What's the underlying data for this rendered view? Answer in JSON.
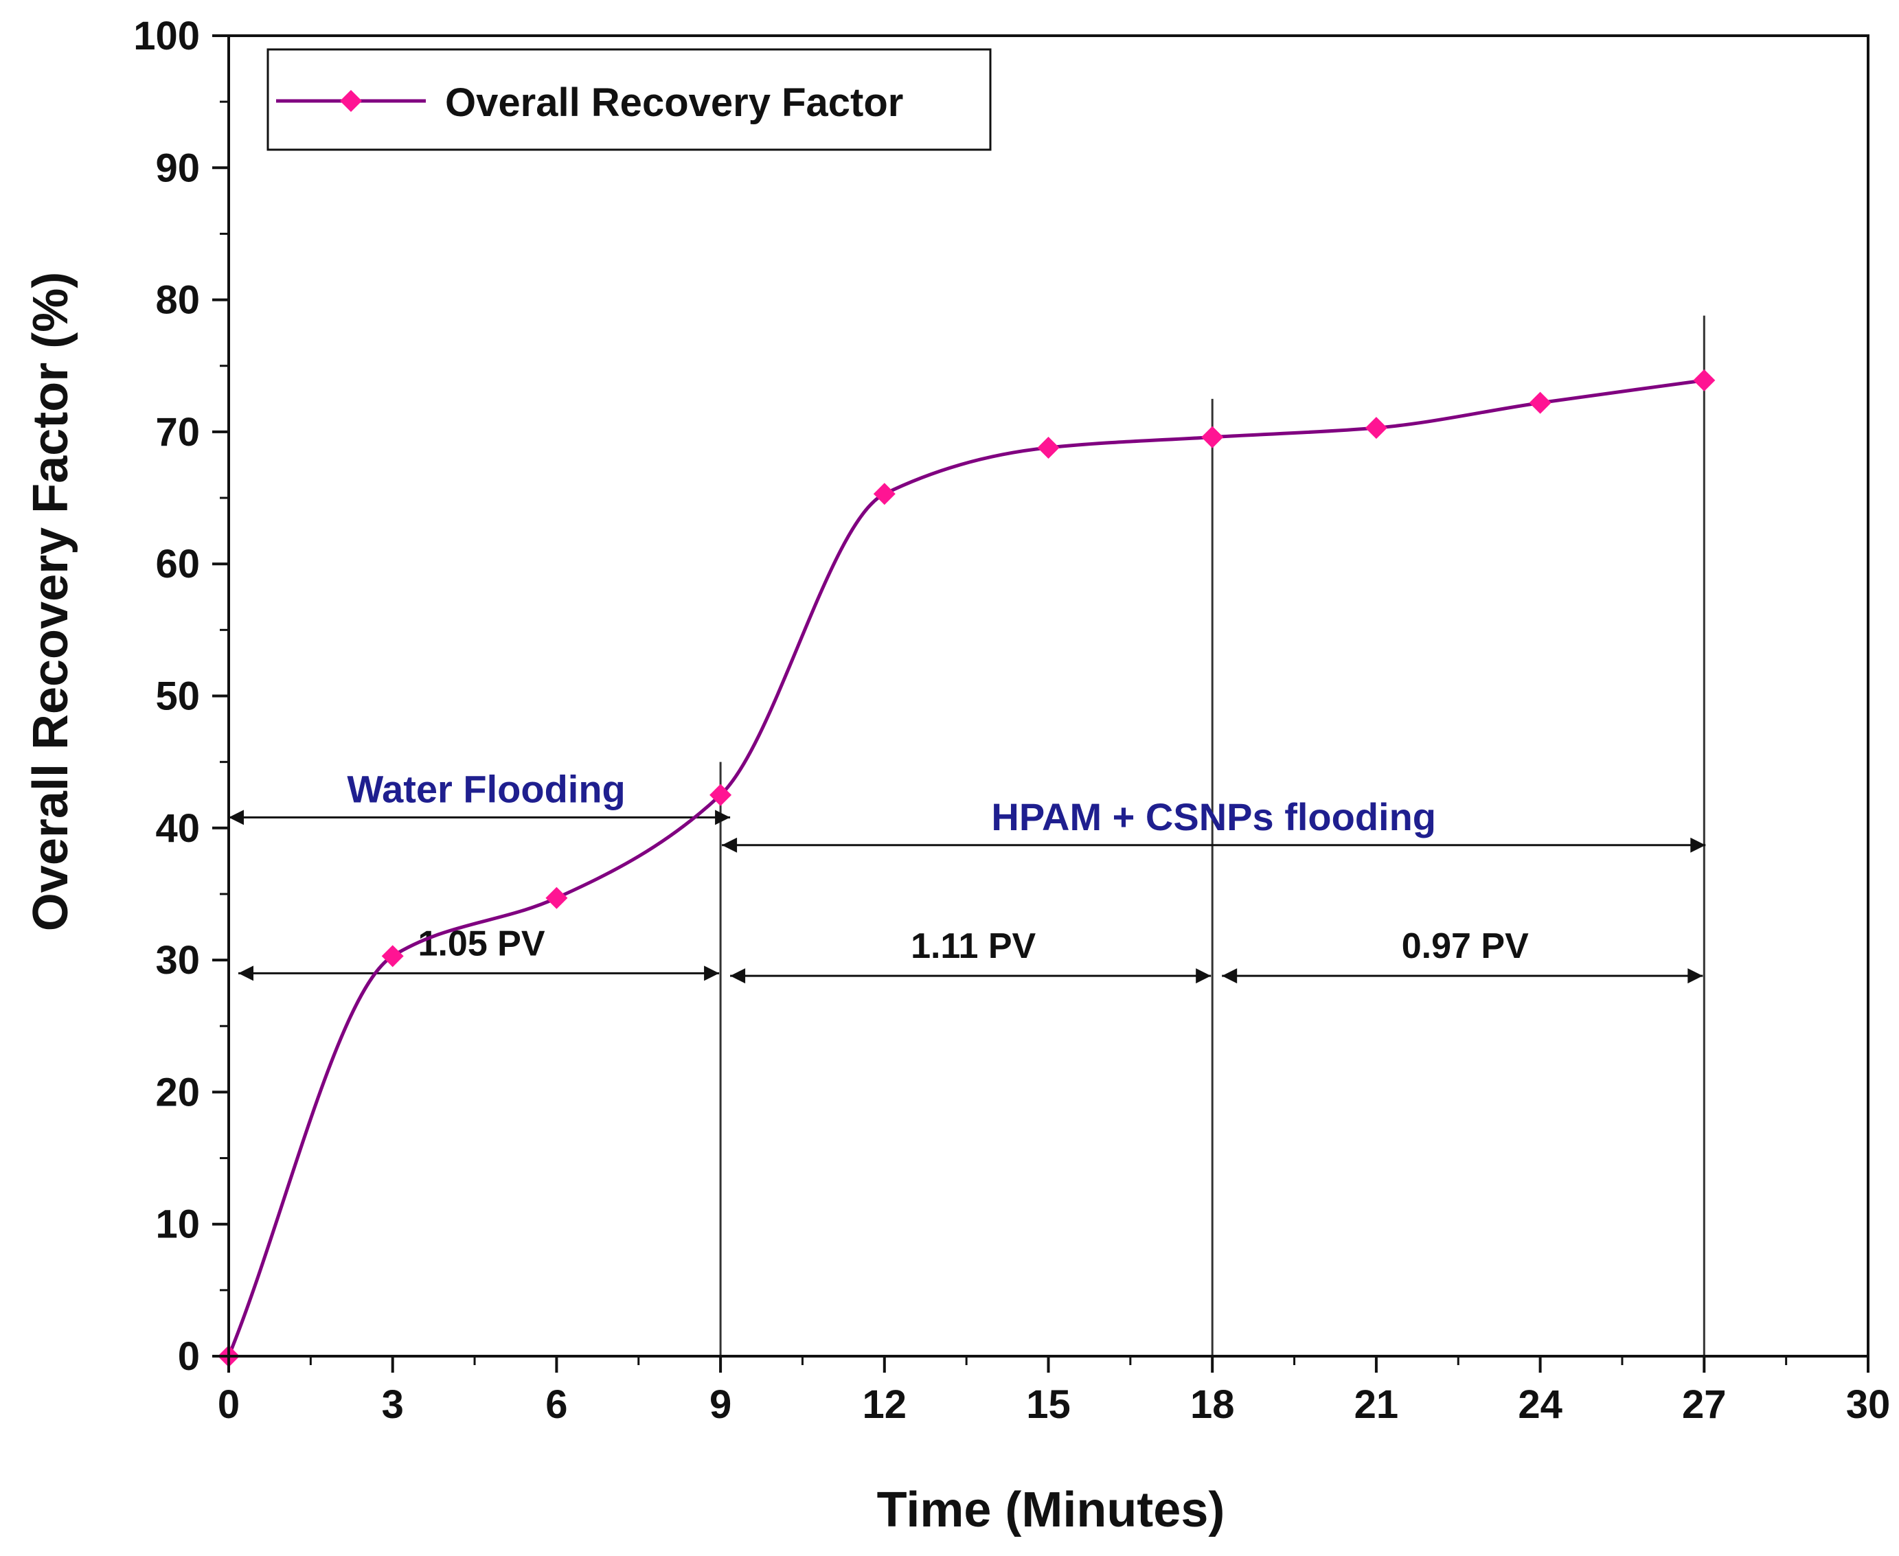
{
  "chart_data": {
    "type": "line",
    "title": "",
    "xlabel": "Time (Minutes)",
    "ylabel": "Overall Recovery Factor (%)",
    "xlim": [
      0,
      30
    ],
    "ylim": [
      0,
      100
    ],
    "x_ticks": [
      0,
      3,
      6,
      9,
      12,
      15,
      18,
      21,
      24,
      27,
      30
    ],
    "y_ticks": [
      0,
      10,
      20,
      30,
      40,
      50,
      60,
      70,
      80,
      90,
      100
    ],
    "x_tick_labels": [
      "0",
      "3",
      "6",
      "9",
      "12",
      "15",
      "18",
      "21",
      "24",
      "27",
      "30"
    ],
    "y_tick_labels": [
      "0",
      "10",
      "20",
      "30",
      "40",
      "50",
      "60",
      "70",
      "80",
      "90",
      "100"
    ],
    "grid": false,
    "legend": {
      "position": "top-left",
      "entries": [
        {
          "label": "Overall Recovery Factor",
          "color": "#800080",
          "marker_color": "#ff1493"
        }
      ]
    },
    "series": [
      {
        "name": "Overall Recovery Factor",
        "color": "#800080",
        "marker_color": "#ff1493",
        "x": [
          0,
          3,
          6,
          9,
          12,
          15,
          18,
          21,
          24,
          27
        ],
        "y": [
          0,
          30.3,
          34.7,
          42.5,
          65.3,
          68.8,
          69.6,
          70.3,
          72.2,
          73.9
        ]
      }
    ],
    "annotations": {
      "phases": [
        {
          "label": "Water Flooding",
          "x_from": 0,
          "x_to": 9,
          "y": 40.8,
          "color": "#1f1f8f"
        },
        {
          "label": "HPAM + CSNPs flooding",
          "x_from": 9,
          "x_to": 27,
          "y": 38.7,
          "color": "#1f1f8f"
        }
      ],
      "pore_volumes": [
        {
          "label": "1.05 PV",
          "x_from": 0,
          "x_to": 9,
          "y": 29.0
        },
        {
          "label": "1.11 PV",
          "x_from": 9,
          "x_to": 18,
          "y": 28.8
        },
        {
          "label": "0.97 PV",
          "x_from": 18,
          "x_to": 27,
          "y": 28.8
        }
      ],
      "vertical_markers": [
        {
          "x": 9,
          "y_top": 45
        },
        {
          "x": 18,
          "y_top": 72.5
        },
        {
          "x": 27,
          "y_top": 78.8
        }
      ]
    }
  }
}
